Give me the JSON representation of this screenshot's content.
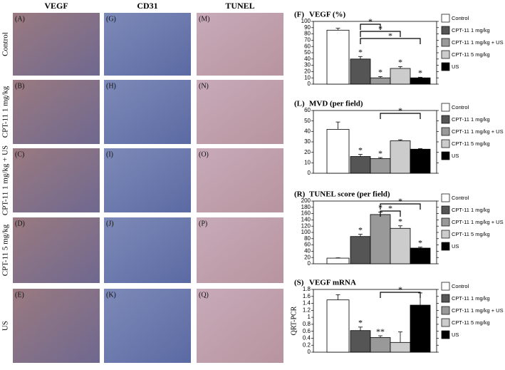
{
  "figure": {
    "columns": [
      "VEGF",
      "CD31",
      "TUNEL"
    ],
    "rows": [
      "Control",
      "CPT-11 1 mg/kg",
      "CPT-11 1 mg/kg + US",
      "CPT-11 5 mg/kg",
      "US"
    ],
    "panels": [
      [
        "(A)",
        "(G)",
        "(M)"
      ],
      [
        "(B)",
        "(H)",
        "(N)"
      ],
      [
        "(C)",
        "(I)",
        "(O)"
      ],
      [
        "(D)",
        "(J)",
        "(P)"
      ],
      [
        "(E)",
        "(K)",
        "(Q)"
      ]
    ]
  },
  "chart_data": [
    {
      "type": "bar",
      "panel": "(F)",
      "title": "VEGF (%)",
      "ylim": [
        0,
        100
      ],
      "yticks": [
        0,
        10,
        20,
        30,
        40,
        50,
        60,
        70,
        80,
        90,
        100
      ],
      "series": [
        {
          "name": "Control",
          "color": "#ffffff",
          "values": [
            86
          ],
          "errors": [
            3
          ]
        },
        {
          "name": "CPT-11 1 mg/kg",
          "color": "#555555",
          "values": [
            40
          ],
          "errors": [
            4
          ],
          "star": "*"
        },
        {
          "name": "CPT-11 1 mg/kg + US",
          "color": "#999999",
          "values": [
            10
          ],
          "errors": [
            2
          ],
          "star": "*"
        },
        {
          "name": "CPT-11 5 mg/kg",
          "color": "#cccccc",
          "values": [
            25
          ],
          "errors": [
            3
          ],
          "star": "*"
        },
        {
          "name": "US",
          "color": "#000000",
          "values": [
            10
          ],
          "errors": [
            1
          ],
          "star": "*"
        }
      ],
      "brackets": [
        {
          "label": "*"
        },
        {
          "label": "*"
        },
        {
          "label": "*"
        }
      ]
    },
    {
      "type": "bar",
      "panel": "(L)",
      "title": "MVD (per field)",
      "ylim": [
        0,
        60
      ],
      "yticks": [
        0,
        10,
        20,
        30,
        40,
        50,
        60
      ],
      "series": [
        {
          "name": "Control",
          "color": "#ffffff",
          "values": [
            42
          ],
          "errors": [
            7
          ]
        },
        {
          "name": "CPT-11 1 mg/kg",
          "color": "#555555",
          "values": [
            16
          ],
          "errors": [
            2
          ],
          "star": "*"
        },
        {
          "name": "CPT-11 1 mg/kg + US",
          "color": "#999999",
          "values": [
            14
          ],
          "errors": [
            1
          ],
          "star": "*"
        },
        {
          "name": "CPT-11 5 mg/kg",
          "color": "#cccccc",
          "values": [
            31
          ],
          "errors": [
            1
          ]
        },
        {
          "name": "US",
          "color": "#000000",
          "values": [
            23
          ],
          "errors": [
            0.5
          ]
        }
      ],
      "brackets": [
        {
          "label": "*"
        }
      ]
    },
    {
      "type": "bar",
      "panel": "(R)",
      "title": "TUNEL score (per field)",
      "ylim": [
        0,
        200
      ],
      "yticks": [
        0,
        20,
        40,
        60,
        80,
        100,
        120,
        140,
        160,
        180,
        200
      ],
      "series": [
        {
          "name": "Control",
          "color": "#ffffff",
          "values": [
            18
          ],
          "errors": [
            1
          ]
        },
        {
          "name": "CPT-11 1 mg/kg",
          "color": "#555555",
          "values": [
            87
          ],
          "errors": [
            7
          ],
          "star": "*"
        },
        {
          "name": "CPT-11 1 mg/kg + US",
          "color": "#999999",
          "values": [
            157
          ],
          "errors": [
            8
          ],
          "star": "*"
        },
        {
          "name": "CPT-11 5 mg/kg",
          "color": "#cccccc",
          "values": [
            113
          ],
          "errors": [
            8
          ],
          "star": "*"
        },
        {
          "name": "US",
          "color": "#000000",
          "values": [
            50
          ],
          "errors": [
            3
          ],
          "star": "*"
        }
      ],
      "brackets": [
        {
          "label": "*"
        },
        {
          "label": "*"
        }
      ]
    },
    {
      "type": "bar",
      "panel": "(S)",
      "title": "VEGF mRNA",
      "ylabel": "QRT-PCR",
      "ylim": [
        0,
        1.8
      ],
      "yticks": [
        0,
        0.2,
        0.4,
        0.6,
        0.8,
        1,
        1.2,
        1.4,
        1.6,
        1.8
      ],
      "series": [
        {
          "name": "Control",
          "color": "#ffffff",
          "values": [
            1.5
          ],
          "errors": [
            0.15
          ]
        },
        {
          "name": "CPT-11 1 mg/kg",
          "color": "#555555",
          "values": [
            0.62
          ],
          "errors": [
            0.1
          ],
          "star": "*"
        },
        {
          "name": "CPT-11 1 mg/kg + US",
          "color": "#999999",
          "values": [
            0.42
          ],
          "errors": [
            0.05
          ],
          "star": "**"
        },
        {
          "name": "CPT-11 5 mg/kg",
          "color": "#cccccc",
          "values": [
            0.28
          ],
          "errors": [
            0.3
          ]
        },
        {
          "name": "US",
          "color": "#000000",
          "values": [
            1.35
          ],
          "errors": [
            0.35
          ]
        }
      ],
      "brackets": [
        {
          "label": "*"
        }
      ]
    }
  ]
}
